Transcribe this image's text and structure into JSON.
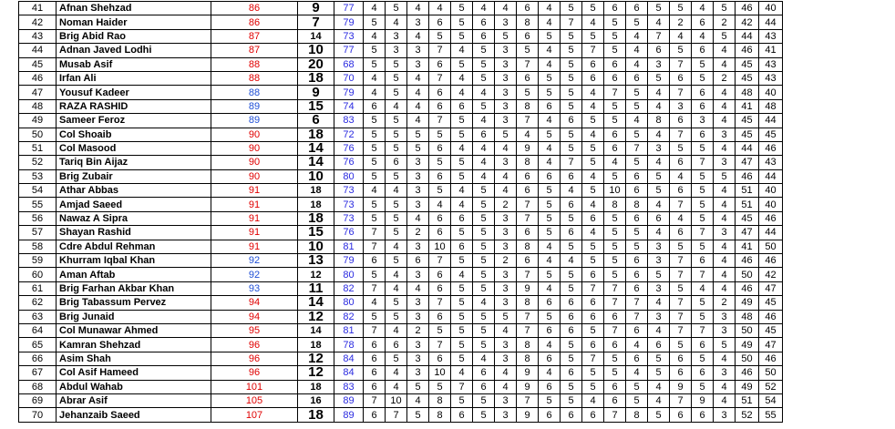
{
  "rows": [
    {
      "sn": "41",
      "name": "Afnan Shehzad",
      "total": "86",
      "total_color": "red",
      "rank": "9",
      "rank_size": "big",
      "pct": "77",
      "cells": [
        "4",
        "5",
        "4",
        "4",
        "5",
        "4",
        "4",
        "6",
        "4",
        "5",
        "5",
        "6",
        "6",
        "5",
        "5",
        "4",
        "5"
      ],
      "t1": "46",
      "t2": "40"
    },
    {
      "sn": "42",
      "name": "Noman Haider",
      "total": "86",
      "total_color": "red",
      "rank": "7",
      "rank_size": "big",
      "pct": "79",
      "cells": [
        "5",
        "4",
        "3",
        "6",
        "5",
        "6",
        "3",
        "8",
        "4",
        "7",
        "4",
        "5",
        "5",
        "4",
        "2",
        "6",
        "2"
      ],
      "t1": "42",
      "t2": "44"
    },
    {
      "sn": "43",
      "name": "Brig Abid Rao",
      "total": "87",
      "total_color": "red",
      "rank": "14",
      "rank_size": "small",
      "pct": "73",
      "cells": [
        "4",
        "3",
        "4",
        "5",
        "5",
        "6",
        "5",
        "6",
        "5",
        "5",
        "5",
        "5",
        "4",
        "7",
        "4",
        "4",
        "5"
      ],
      "t1": "44",
      "t2": "43"
    },
    {
      "sn": "44",
      "name": "Adnan Javed Lodhi",
      "total": "87",
      "total_color": "red",
      "rank": "10",
      "rank_size": "big",
      "pct": "77",
      "cells": [
        "5",
        "3",
        "3",
        "7",
        "4",
        "5",
        "3",
        "5",
        "4",
        "5",
        "7",
        "5",
        "4",
        "6",
        "5",
        "6",
        "4"
      ],
      "t1": "46",
      "t2": "41"
    },
    {
      "sn": "45",
      "name": "Musab Asif",
      "total": "88",
      "total_color": "red",
      "rank": "20",
      "rank_size": "big",
      "pct": "68",
      "cells": [
        "5",
        "5",
        "3",
        "6",
        "5",
        "5",
        "3",
        "7",
        "4",
        "5",
        "6",
        "6",
        "4",
        "3",
        "7",
        "5",
        "4"
      ],
      "t1": "45",
      "t2": "43"
    },
    {
      "sn": "46",
      "name": "Irfan Ali",
      "total": "88",
      "total_color": "red",
      "rank": "18",
      "rank_size": "big",
      "pct": "70",
      "cells": [
        "4",
        "5",
        "4",
        "7",
        "4",
        "5",
        "3",
        "6",
        "5",
        "5",
        "6",
        "6",
        "6",
        "5",
        "6",
        "5",
        "2"
      ],
      "t1": "45",
      "t2": "43"
    },
    {
      "sn": "47",
      "name": "Yousuf Kadeer",
      "total": "88",
      "total_color": "blue",
      "rank": "9",
      "rank_size": "big",
      "pct": "79",
      "cells": [
        "4",
        "5",
        "4",
        "6",
        "4",
        "4",
        "3",
        "5",
        "5",
        "5",
        "4",
        "7",
        "5",
        "4",
        "7",
        "6",
        "4"
      ],
      "t1": "48",
      "t2": "40"
    },
    {
      "sn": "48",
      "name": "RAZA RASHID",
      "total": "89",
      "total_color": "blue",
      "rank": "15",
      "rank_size": "big",
      "pct": "74",
      "cells": [
        "6",
        "4",
        "4",
        "6",
        "6",
        "5",
        "3",
        "8",
        "6",
        "5",
        "4",
        "5",
        "5",
        "4",
        "3",
        "6",
        "4"
      ],
      "t1": "41",
      "t2": "48"
    },
    {
      "sn": "49",
      "name": "Sameer Feroz",
      "total": "89",
      "total_color": "blue",
      "rank": "6",
      "rank_size": "big",
      "pct": "83",
      "cells": [
        "5",
        "5",
        "4",
        "7",
        "5",
        "4",
        "3",
        "7",
        "4",
        "6",
        "5",
        "5",
        "4",
        "8",
        "6",
        "3",
        "4"
      ],
      "t1": "45",
      "t2": "44"
    },
    {
      "sn": "50",
      "name": "Col Shoaib",
      "total": "90",
      "total_color": "red",
      "rank": "18",
      "rank_size": "big",
      "pct": "72",
      "cells": [
        "5",
        "5",
        "5",
        "5",
        "5",
        "6",
        "5",
        "4",
        "5",
        "5",
        "4",
        "6",
        "5",
        "4",
        "7",
        "6",
        "3"
      ],
      "t1": "45",
      "t2": "45"
    },
    {
      "sn": "51",
      "name": "Col Masood",
      "total": "90",
      "total_color": "red",
      "rank": "14",
      "rank_size": "big",
      "pct": "76",
      "cells": [
        "5",
        "5",
        "5",
        "6",
        "4",
        "4",
        "4",
        "9",
        "4",
        "5",
        "5",
        "6",
        "7",
        "3",
        "5",
        "5",
        "4"
      ],
      "t1": "44",
      "t2": "46"
    },
    {
      "sn": "52",
      "name": "Tariq Bin Aijaz",
      "total": "90",
      "total_color": "red",
      "rank": "14",
      "rank_size": "big",
      "pct": "76",
      "cells": [
        "5",
        "6",
        "3",
        "5",
        "5",
        "4",
        "3",
        "8",
        "4",
        "7",
        "5",
        "4",
        "5",
        "4",
        "6",
        "7",
        "3"
      ],
      "t1": "47",
      "t2": "43"
    },
    {
      "sn": "53",
      "name": "Brig Zubair",
      "total": "90",
      "total_color": "red",
      "rank": "10",
      "rank_size": "big",
      "pct": "80",
      "cells": [
        "5",
        "5",
        "3",
        "6",
        "5",
        "4",
        "4",
        "6",
        "6",
        "6",
        "4",
        "5",
        "6",
        "5",
        "4",
        "5",
        "5"
      ],
      "t1": "46",
      "t2": "44"
    },
    {
      "sn": "54",
      "name": "Athar Abbas",
      "total": "91",
      "total_color": "red",
      "rank": "18",
      "rank_size": "small",
      "pct": "73",
      "cells": [
        "4",
        "4",
        "3",
        "5",
        "4",
        "5",
        "4",
        "6",
        "5",
        "4",
        "5",
        "10",
        "6",
        "5",
        "6",
        "5",
        "4"
      ],
      "t1": "51",
      "t2": "40"
    },
    {
      "sn": "55",
      "name": "Amjad Saeed",
      "total": "91",
      "total_color": "red",
      "rank": "18",
      "rank_size": "small",
      "pct": "73",
      "cells": [
        "5",
        "5",
        "3",
        "4",
        "4",
        "5",
        "2",
        "7",
        "5",
        "6",
        "4",
        "8",
        "8",
        "4",
        "7",
        "5",
        "4"
      ],
      "t1": "51",
      "t2": "40"
    },
    {
      "sn": "56",
      "name": "Nawaz A Sipra",
      "total": "91",
      "total_color": "red",
      "rank": "18",
      "rank_size": "big",
      "pct": "73",
      "cells": [
        "5",
        "5",
        "4",
        "6",
        "6",
        "5",
        "3",
        "7",
        "5",
        "5",
        "6",
        "5",
        "6",
        "6",
        "4",
        "5",
        "4"
      ],
      "t1": "45",
      "t2": "46"
    },
    {
      "sn": "57",
      "name": "Shayan Rashid",
      "total": "91",
      "total_color": "red",
      "rank": "15",
      "rank_size": "big",
      "pct": "76",
      "cells": [
        "7",
        "5",
        "2",
        "6",
        "5",
        "5",
        "3",
        "6",
        "5",
        "6",
        "4",
        "5",
        "5",
        "4",
        "6",
        "7",
        "3"
      ],
      "t1": "47",
      "t2": "44"
    },
    {
      "sn": "58",
      "name": "Cdre Abdul Rehman",
      "total": "91",
      "total_color": "red",
      "rank": "10",
      "rank_size": "big",
      "pct": "81",
      "cells": [
        "7",
        "4",
        "3",
        "10",
        "6",
        "5",
        "3",
        "8",
        "4",
        "5",
        "5",
        "5",
        "5",
        "3",
        "5",
        "5",
        "4"
      ],
      "t1": "41",
      "t2": "50"
    },
    {
      "sn": "59",
      "name": "Khurram Iqbal Khan",
      "total": "92",
      "total_color": "blue",
      "rank": "13",
      "rank_size": "big",
      "pct": "79",
      "cells": [
        "6",
        "5",
        "6",
        "7",
        "5",
        "5",
        "2",
        "6",
        "4",
        "4",
        "5",
        "5",
        "6",
        "3",
        "7",
        "6",
        "4"
      ],
      "t1": "46",
      "t2": "46"
    },
    {
      "sn": "60",
      "name": "Aman Aftab",
      "total": "92",
      "total_color": "blue",
      "rank": "12",
      "rank_size": "small",
      "pct": "80",
      "cells": [
        "5",
        "4",
        "3",
        "6",
        "4",
        "5",
        "3",
        "7",
        "5",
        "5",
        "6",
        "5",
        "6",
        "5",
        "7",
        "7",
        "4"
      ],
      "t1": "50",
      "t2": "42"
    },
    {
      "sn": "61",
      "name": "Brig Farhan Akbar Khan",
      "total": "93",
      "total_color": "blue",
      "rank": "11",
      "rank_size": "big",
      "pct": "82",
      "cells": [
        "7",
        "4",
        "4",
        "6",
        "5",
        "5",
        "3",
        "9",
        "4",
        "5",
        "7",
        "7",
        "6",
        "3",
        "5",
        "4",
        "4"
      ],
      "t1": "46",
      "t2": "47"
    },
    {
      "sn": "62",
      "name": "Brig Tabassum Pervez",
      "total": "94",
      "total_color": "red",
      "rank": "14",
      "rank_size": "big",
      "pct": "80",
      "cells": [
        "4",
        "5",
        "3",
        "7",
        "5",
        "4",
        "3",
        "8",
        "6",
        "6",
        "6",
        "7",
        "7",
        "4",
        "7",
        "5",
        "2"
      ],
      "t1": "49",
      "t2": "45"
    },
    {
      "sn": "63",
      "name": "Brig Junaid",
      "total": "94",
      "total_color": "red",
      "rank": "12",
      "rank_size": "big",
      "pct": "82",
      "cells": [
        "5",
        "5",
        "3",
        "6",
        "5",
        "5",
        "5",
        "7",
        "5",
        "6",
        "6",
        "6",
        "7",
        "3",
        "7",
        "5",
        "3"
      ],
      "t1": "48",
      "t2": "46"
    },
    {
      "sn": "64",
      "name": "Col Munawar Ahmed",
      "total": "95",
      "total_color": "red",
      "rank": "14",
      "rank_size": "small",
      "pct": "81",
      "cells": [
        "7",
        "4",
        "2",
        "5",
        "5",
        "5",
        "4",
        "7",
        "6",
        "6",
        "5",
        "7",
        "6",
        "4",
        "7",
        "7",
        "3"
      ],
      "t1": "50",
      "t2": "45"
    },
    {
      "sn": "65",
      "name": "Kamran Shehzad",
      "total": "96",
      "total_color": "red",
      "rank": "18",
      "rank_size": "small",
      "pct": "78",
      "cells": [
        "6",
        "6",
        "3",
        "7",
        "5",
        "5",
        "3",
        "8",
        "4",
        "5",
        "6",
        "6",
        "4",
        "6",
        "5",
        "6",
        "5"
      ],
      "t1": "49",
      "t2": "47"
    },
    {
      "sn": "66",
      "name": "Asim Shah",
      "total": "96",
      "total_color": "red",
      "rank": "12",
      "rank_size": "big",
      "pct": "84",
      "cells": [
        "6",
        "5",
        "3",
        "6",
        "5",
        "4",
        "3",
        "8",
        "6",
        "5",
        "7",
        "5",
        "6",
        "5",
        "6",
        "5",
        "4"
      ],
      "t1": "50",
      "t2": "46"
    },
    {
      "sn": "67",
      "name": "Col Asif Hameed",
      "total": "96",
      "total_color": "red",
      "rank": "12",
      "rank_size": "big",
      "pct": "84",
      "cells": [
        "6",
        "4",
        "3",
        "10",
        "4",
        "6",
        "4",
        "9",
        "4",
        "6",
        "5",
        "5",
        "4",
        "5",
        "6",
        "6",
        "3"
      ],
      "t1": "46",
      "t2": "50"
    },
    {
      "sn": "68",
      "name": "Abdul Wahab",
      "total": "101",
      "total_color": "red",
      "rank": "18",
      "rank_size": "small",
      "pct": "83",
      "cells": [
        "6",
        "4",
        "5",
        "5",
        "7",
        "6",
        "4",
        "9",
        "6",
        "5",
        "5",
        "6",
        "5",
        "4",
        "9",
        "5",
        "4"
      ],
      "t1": "49",
      "t2": "52"
    },
    {
      "sn": "69",
      "name": "Abrar Asif",
      "total": "105",
      "total_color": "red",
      "rank": "16",
      "rank_size": "small",
      "pct": "89",
      "cells": [
        "7",
        "10",
        "4",
        "8",
        "5",
        "5",
        "3",
        "7",
        "5",
        "5",
        "4",
        "6",
        "5",
        "4",
        "7",
        "9",
        "4"
      ],
      "t1": "51",
      "t2": "54"
    },
    {
      "sn": "70",
      "name": "Jehanzaib Saeed",
      "total": "107",
      "total_color": "red",
      "rank": "18",
      "rank_size": "big",
      "pct": "89",
      "cells": [
        "6",
        "7",
        "5",
        "8",
        "6",
        "5",
        "3",
        "9",
        "6",
        "6",
        "6",
        "7",
        "8",
        "5",
        "6",
        "6",
        "3"
      ],
      "t1": "52",
      "t2": "55"
    }
  ]
}
